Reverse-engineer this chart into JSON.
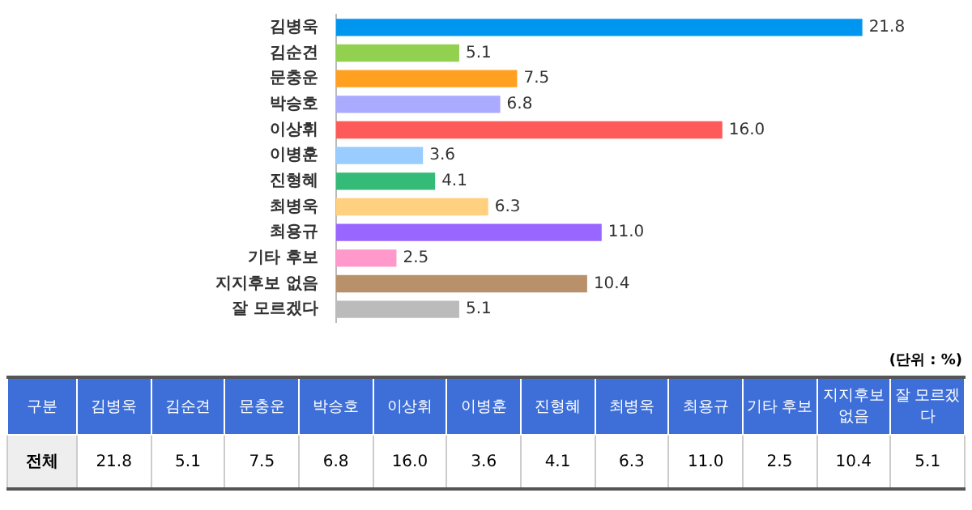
{
  "chart_data": {
    "type": "bar",
    "orientation": "horizontal",
    "categories": [
      "김병욱",
      "김순견",
      "문충운",
      "박승호",
      "이상휘",
      "이병훈",
      "진형혜",
      "최병욱",
      "최용규",
      "기타 후보",
      "지지후보 없음",
      "잘 모르겠다"
    ],
    "values": [
      21.8,
      5.1,
      7.5,
      6.8,
      16.0,
      3.6,
      4.1,
      6.3,
      11.0,
      2.5,
      10.4,
      5.1
    ],
    "value_labels": [
      "21.8",
      "5.1",
      "7.5",
      "6.8",
      "16.0",
      "3.6",
      "4.1",
      "6.3",
      "11.0",
      "2.5",
      "10.4",
      "5.1"
    ],
    "colors": [
      "#0096f0",
      "#92d050",
      "#ffa020",
      "#aaaaff",
      "#ff5a5a",
      "#99ccff",
      "#33bb77",
      "#ffd07f",
      "#9966ff",
      "#ff99cc",
      "#b8906a",
      "#bbbbbb"
    ],
    "tick_labels": "y",
    "legend": false,
    "annotations": [
      "(단위 : %)",
      "구분",
      "전체"
    ]
  }
}
